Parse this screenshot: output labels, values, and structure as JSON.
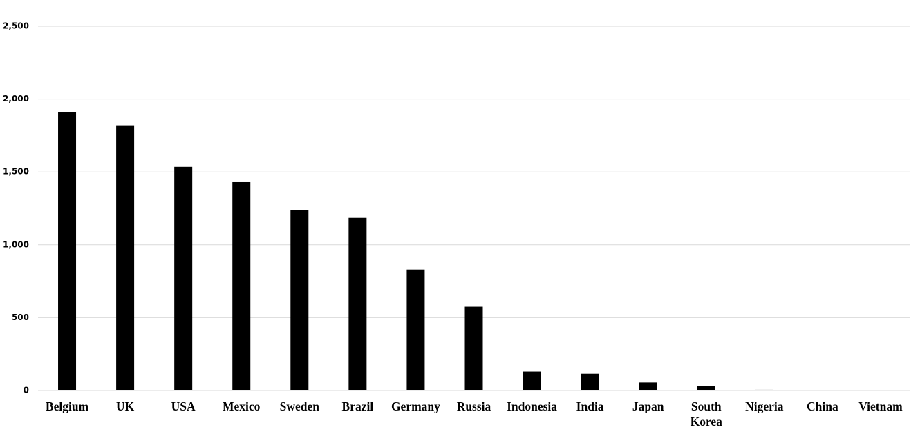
{
  "chart_data": {
    "type": "bar",
    "categories": [
      "Belgium",
      "UK",
      "USA",
      "Mexico",
      "Sweden",
      "Brazil",
      "Germany",
      "Russia",
      "Indonesia",
      "India",
      "Japan",
      "South Korea",
      "Nigeria",
      "China",
      "Vietnam"
    ],
    "values": [
      1910,
      1820,
      1535,
      1430,
      1240,
      1185,
      830,
      575,
      130,
      115,
      55,
      30,
      5,
      0,
      0
    ],
    "color": "#000000",
    "ylim": [
      0,
      2500
    ],
    "yticks": [
      0,
      500,
      {
        "value": 1000,
        "label": "1,000"
      },
      {
        "value": 1500,
        "label": "1,500"
      },
      {
        "value": 2000,
        "label": "2,000"
      },
      {
        "value": 2500,
        "label": "2,500"
      }
    ],
    "grid": true
  }
}
